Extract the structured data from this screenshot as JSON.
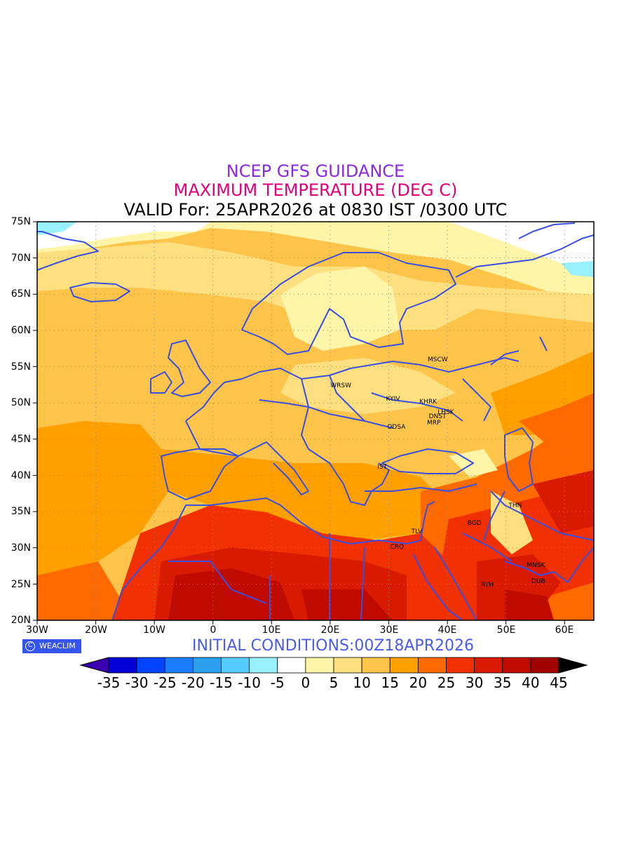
{
  "title": {
    "line1": "NCEP GFS GUIDANCE",
    "line2": "MAXIMUM TEMPERATURE (DEG C)",
    "line3": "VALID For: 25APR2026 at 0830 IST /0300 UTC"
  },
  "axes": {
    "lat_labels": [
      "75N",
      "70N",
      "65N",
      "60N",
      "55N",
      "50N",
      "45N",
      "40N",
      "35N",
      "30N",
      "25N",
      "20N"
    ],
    "lon_labels": [
      "30W",
      "20W",
      "10W",
      "0",
      "10E",
      "20E",
      "30E",
      "40E",
      "50E",
      "60E"
    ]
  },
  "map": {
    "region": "Europe / North Africa / Middle East",
    "lon_range": [
      -30,
      65
    ],
    "lat_range": [
      20,
      75
    ],
    "grid": "dotted",
    "border_color": "#3a4fe0"
  },
  "cities": [
    {
      "code": "MSCW",
      "lon": 37.6,
      "lat": 55.8
    },
    {
      "code": "WRSW",
      "lon": 21.0,
      "lat": 52.2
    },
    {
      "code": "KYIV",
      "lon": 30.5,
      "lat": 50.4
    },
    {
      "code": "KHRK",
      "lon": 36.2,
      "lat": 50.0
    },
    {
      "code": "LHSK",
      "lon": 39.3,
      "lat": 48.6
    },
    {
      "code": "DNST",
      "lon": 37.8,
      "lat": 48.0
    },
    {
      "code": "MRP",
      "lon": 37.5,
      "lat": 47.1
    },
    {
      "code": "ODSA",
      "lon": 30.7,
      "lat": 46.5
    },
    {
      "code": "IST",
      "lon": 29.0,
      "lat": 41.0
    },
    {
      "code": "THN",
      "lon": 51.4,
      "lat": 35.7
    },
    {
      "code": "BGD",
      "lon": 44.4,
      "lat": 33.3
    },
    {
      "code": "TLV",
      "lon": 34.8,
      "lat": 32.1
    },
    {
      "code": "CRO",
      "lon": 31.2,
      "lat": 30.0
    },
    {
      "code": "MNSK",
      "lon": 54.5,
      "lat": 27.5
    },
    {
      "code": "RYH",
      "lon": 46.7,
      "lat": 24.7
    },
    {
      "code": "DUB",
      "lon": 55.3,
      "lat": 25.2
    }
  ],
  "badge": {
    "text": "WEACLIM",
    "icon": "weaclim-logo-icon"
  },
  "initial_conditions": "INITIAL  CONDITIONS:00Z18APR2026",
  "colorbar": {
    "labels": [
      "-35",
      "-30",
      "-25",
      "-20",
      "-15",
      "-10",
      "-5",
      "0",
      "5",
      "10",
      "15",
      "20",
      "25",
      "30",
      "35",
      "40",
      "45"
    ],
    "colors": [
      "#3a00b0",
      "#0000d6",
      "#0044ff",
      "#1a7dff",
      "#2aa0ee",
      "#55ccff",
      "#99f0ff",
      "#ffffff",
      "#fff5a8",
      "#ffe080",
      "#ffc44a",
      "#ffa000",
      "#ff6a00",
      "#f03000",
      "#d81a00",
      "#bf0a00",
      "#a00000",
      "#000000"
    ]
  }
}
